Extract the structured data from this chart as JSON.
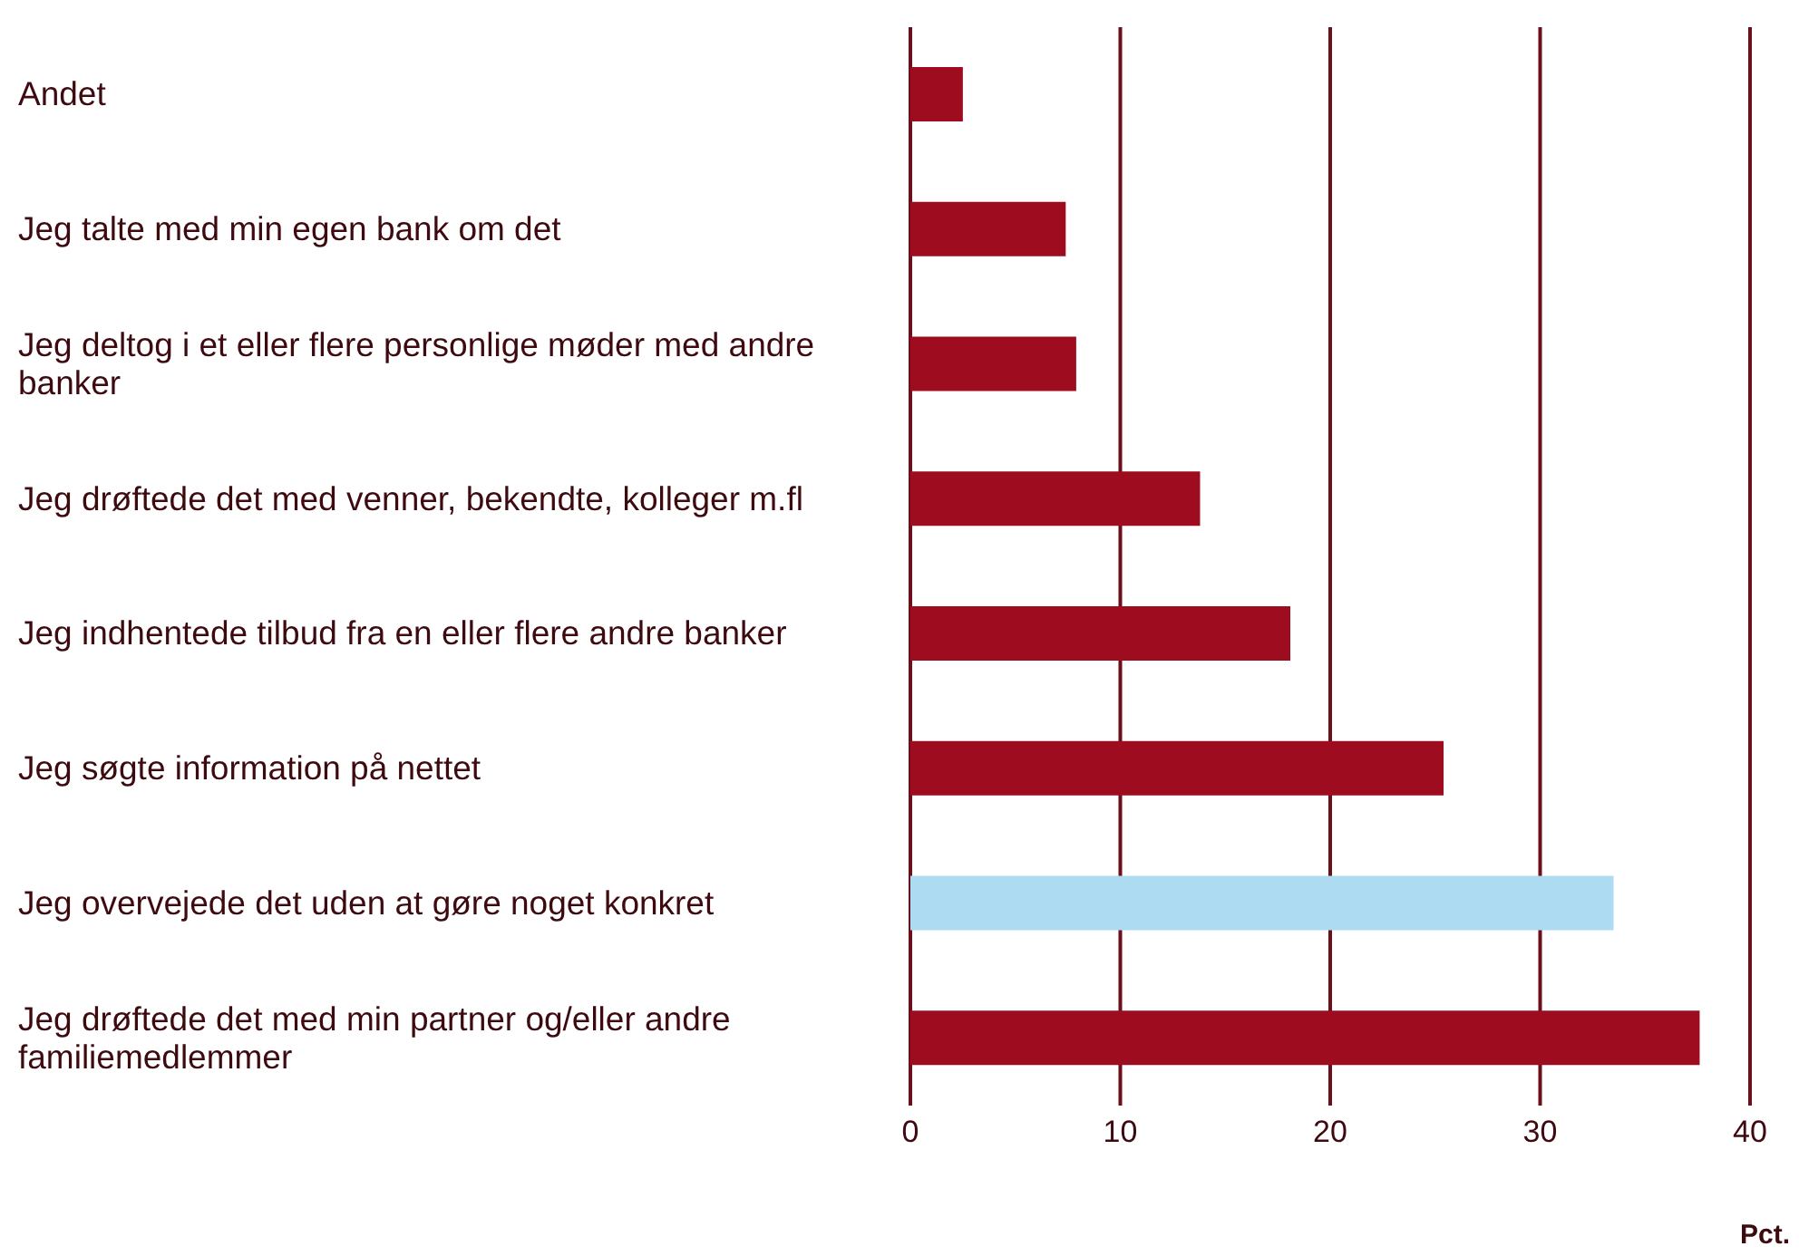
{
  "chart_data": {
    "type": "bar",
    "orientation": "horizontal",
    "xlabel": "Pct.",
    "categories": [
      "Andet",
      "Jeg talte med min egen bank om det",
      "Jeg deltog i et eller flere personlige møder med andre banker",
      "Jeg drøftede det med venner, bekendte, kolleger m.fl",
      "Jeg indhentede tilbud fra en eller flere andre banker",
      "Jeg søgte information på nettet",
      "Jeg overvejede det uden at gøre noget konkret",
      "Jeg drøftede det med min partner og/eller andre familiemedlemmer"
    ],
    "values": [
      2.5,
      7.4,
      7.9,
      13.8,
      18.1,
      25.4,
      33.5,
      37.6
    ],
    "colors": [
      "#9e0c1f",
      "#9e0c1f",
      "#9e0c1f",
      "#9e0c1f",
      "#9e0c1f",
      "#9e0c1f",
      "#addcf2",
      "#9e0c1f"
    ],
    "xlim": [
      0,
      40
    ],
    "xticks": [
      0,
      10,
      20,
      30,
      40
    ],
    "grid": "x",
    "legend": false
  }
}
